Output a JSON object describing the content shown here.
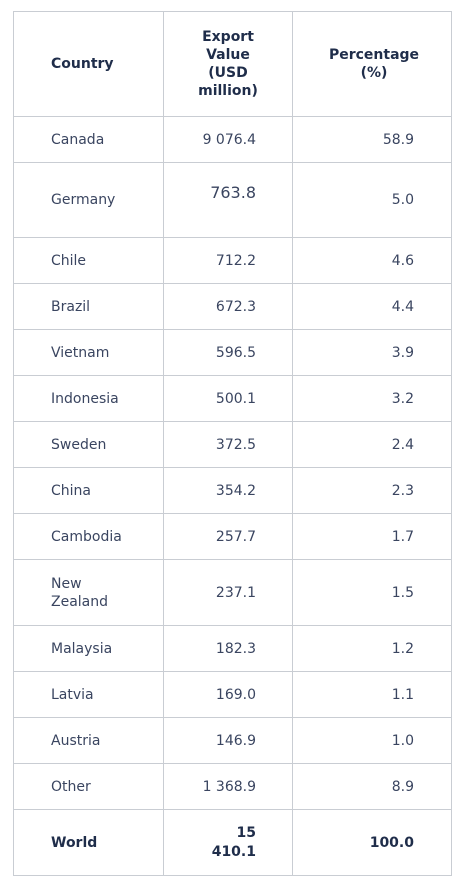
{
  "table": {
    "headers": {
      "country": "Country",
      "value_lines": [
        "Export",
        "Value",
        "(USD",
        "million)"
      ],
      "percent_lines": [
        "Percentage",
        "(%)"
      ]
    },
    "rows": [
      {
        "country": "Canada",
        "value": "9 076.4",
        "percent": "58.9"
      },
      {
        "country": "Germany",
        "value": "763.8",
        "percent": "5.0"
      },
      {
        "country": "Chile",
        "value": "712.2",
        "percent": "4.6"
      },
      {
        "country": "Brazil",
        "value": "672.3",
        "percent": "4.4"
      },
      {
        "country": "Vietnam",
        "value": "596.5",
        "percent": "3.9"
      },
      {
        "country": "Indonesia",
        "value": "500.1",
        "percent": "3.2"
      },
      {
        "country": "Sweden",
        "value": "372.5",
        "percent": "2.4"
      },
      {
        "country": "China",
        "value": "354.2",
        "percent": "2.3"
      },
      {
        "country": "Cambodia",
        "value": "257.7",
        "percent": "1.7"
      },
      {
        "country_lines": [
          "New",
          "Zealand"
        ],
        "value": "237.1",
        "percent": "1.5"
      },
      {
        "country": "Malaysia",
        "value": "182.3",
        "percent": "1.2"
      },
      {
        "country": "Latvia",
        "value": "169.0",
        "percent": "1.1"
      },
      {
        "country": "Austria",
        "value": "146.9",
        "percent": "1.0"
      },
      {
        "country": "Other",
        "value": "1 368.9",
        "percent": "8.9"
      }
    ],
    "total": {
      "country": "World",
      "value_lines": [
        "15",
        "410.1"
      ],
      "percent": "100.0"
    }
  }
}
